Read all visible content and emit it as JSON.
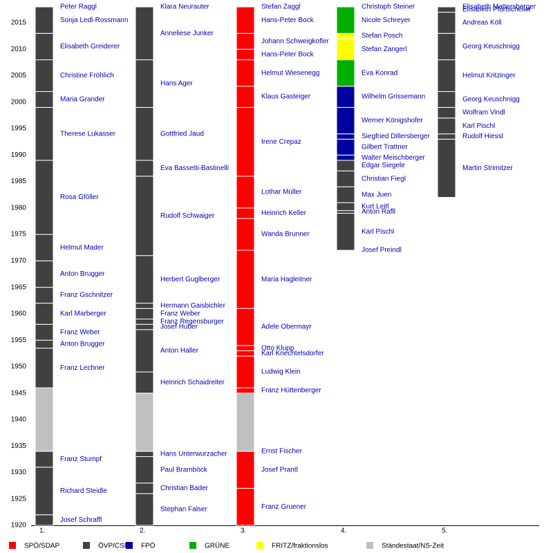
{
  "chart_data": {
    "type": "timeline",
    "ylim": [
      1920,
      2018
    ],
    "yticks": [
      1920,
      1925,
      1930,
      1935,
      1940,
      1945,
      1950,
      1955,
      1960,
      1965,
      1970,
      1975,
      1980,
      1985,
      1990,
      1995,
      2000,
      2005,
      2010,
      2015
    ],
    "parties": [
      {
        "name": "SPÖ/SDAP",
        "color": "#ff0000"
      },
      {
        "name": "ÖVP/CSP",
        "color": "#404040"
      },
      {
        "name": "FPÖ",
        "color": "#0000a0"
      },
      {
        "name": "GRÜNE",
        "color": "#00b000"
      },
      {
        "name": "FRITZ/fraktionslos",
        "color": "#ffff00"
      },
      {
        "name": "Ständestaat/NS-Zeit",
        "color": "#c0c0c0"
      }
    ],
    "columns": [
      {
        "label": "1.",
        "segments": [
          {
            "name": "Josef Schraffl",
            "party": 1,
            "start": 1920,
            "end": 1922
          },
          {
            "name": "Richard Steidle",
            "party": 1,
            "start": 1922,
            "end": 1931
          },
          {
            "name": "Franz Stumpf",
            "party": 1,
            "start": 1931,
            "end": 1934
          },
          {
            "party": 5,
            "start": 1934,
            "end": 1946
          },
          {
            "name": "Franz Lechner",
            "party": 1,
            "start": 1946,
            "end": 1953.5
          },
          {
            "name": "Anton Brugger",
            "party": 1,
            "start": 1953.5,
            "end": 1955
          },
          {
            "name": "Franz Weber",
            "party": 1,
            "start": 1955,
            "end": 1958
          },
          {
            "name": "Karl Marberger",
            "party": 1,
            "start": 1958,
            "end": 1962
          },
          {
            "name": "Franz Gschnitzer",
            "party": 1,
            "start": 1962,
            "end": 1965
          },
          {
            "name": "Anton Brugger",
            "party": 1,
            "start": 1965,
            "end": 1970
          },
          {
            "name": "Helmut Mader",
            "party": 1,
            "start": 1970,
            "end": 1975
          },
          {
            "name": "Rosa Gföller",
            "party": 1,
            "start": 1975,
            "end": 1989
          },
          {
            "name": "Therese Lukasser",
            "party": 1,
            "start": 1989,
            "end": 1999
          },
          {
            "name": "Maria Grander",
            "party": 1,
            "start": 1999,
            "end": 2002
          },
          {
            "name": "Christine Fröhlich",
            "party": 1,
            "start": 2002,
            "end": 2008
          },
          {
            "name": "Elisabeth Greiderer",
            "party": 1,
            "start": 2008,
            "end": 2013
          },
          {
            "name": "Sonja Ledl-Rossmann",
            "party": 1,
            "start": 2013,
            "end": 2018
          },
          {
            "name": "Peter Raggl",
            "party": 1,
            "start": 2018,
            "end": 2018
          }
        ]
      },
      {
        "label": "2.",
        "segments": [
          {
            "name": "Stephan Falser",
            "party": 1,
            "start": 1920,
            "end": 1926
          },
          {
            "name": "Christian Bader",
            "party": 1,
            "start": 1926,
            "end": 1928
          },
          {
            "name": "Paul Bramböck",
            "party": 1,
            "start": 1928,
            "end": 1933
          },
          {
            "name": "Hans Unterwurzacher",
            "party": 1,
            "start": 1933,
            "end": 1934
          },
          {
            "party": 5,
            "start": 1934,
            "end": 1945
          },
          {
            "name": "Heinrich Schaidreiter",
            "party": 1,
            "start": 1945,
            "end": 1949
          },
          {
            "name": "Anton Haller",
            "party": 1,
            "start": 1949,
            "end": 1957
          },
          {
            "name": "Josef Huber",
            "party": 1,
            "start": 1957,
            "end": 1958
          },
          {
            "name": "Franz Regensburger",
            "party": 1,
            "start": 1958,
            "end": 1959
          },
          {
            "name": "Franz Weber",
            "party": 1,
            "start": 1959,
            "end": 1961
          },
          {
            "name": "Hermann Gaisbichler",
            "party": 1,
            "start": 1961,
            "end": 1962
          },
          {
            "name": "Herbert Guglberger",
            "party": 1,
            "start": 1962,
            "end": 1971
          },
          {
            "name": "Rudolf Schwaiger",
            "party": 1,
            "start": 1971,
            "end": 1986
          },
          {
            "name": "Eva Bassetti-Bastinelli",
            "party": 1,
            "start": 1986,
            "end": 1989
          },
          {
            "name": "Gottfried Jaud",
            "party": 1,
            "start": 1989,
            "end": 1999
          },
          {
            "name": "Hans Ager",
            "party": 1,
            "start": 1999,
            "end": 2008
          },
          {
            "name": "Anneliese Junker",
            "party": 1,
            "start": 2008,
            "end": 2018
          },
          {
            "name": "Klara Neurauter",
            "party": 1,
            "start": 2018,
            "end": 2018
          }
        ]
      },
      {
        "label": "3.",
        "segments": [
          {
            "name": "Franz Gruener",
            "party": 0,
            "start": 1920,
            "end": 1927
          },
          {
            "name": "Josef Prantl",
            "party": 0,
            "start": 1927,
            "end": 1934
          },
          {
            "name": "Ernst Fischer",
            "party": 0,
            "start": 1934,
            "end": 1934
          },
          {
            "party": 5,
            "start": 1934,
            "end": 1945
          },
          {
            "name": "Franz Hüttenberger",
            "party": 0,
            "start": 1945,
            "end": 1946
          },
          {
            "name": "Ludwig Klein",
            "party": 0,
            "start": 1946,
            "end": 1952
          },
          {
            "name": "Karl Knechtelsdorfer",
            "party": 0,
            "start": 1952,
            "end": 1953
          },
          {
            "name": "Otto Klupp",
            "party": 0,
            "start": 1953,
            "end": 1954
          },
          {
            "name": "Adele Obermayr",
            "party": 0,
            "start": 1954,
            "end": 1961
          },
          {
            "name": "Maria Hagleitner",
            "party": 0,
            "start": 1961,
            "end": 1972
          },
          {
            "name": "Wanda Brunner",
            "party": 0,
            "start": 1972,
            "end": 1978
          },
          {
            "name": "Heinrich Keller",
            "party": 0,
            "start": 1978,
            "end": 1980
          },
          {
            "name": "Lothar Müller",
            "party": 0,
            "start": 1980,
            "end": 1986
          },
          {
            "name": "Irene Crepaz",
            "party": 0,
            "start": 1986,
            "end": 1999
          },
          {
            "name": "Klaus Gasteiger",
            "party": 0,
            "start": 1999,
            "end": 2003
          },
          {
            "name": "Helmut Wiesenegg",
            "party": 0,
            "start": 2003,
            "end": 2008
          },
          {
            "name": "Hans-Peter Bock",
            "party": 0,
            "start": 2008,
            "end": 2010
          },
          {
            "name": "Johann Schweigkofler",
            "party": 0,
            "start": 2010,
            "end": 2013
          },
          {
            "name": "Hans-Peter Bock",
            "party": 0,
            "start": 2013,
            "end": 2018
          },
          {
            "name": "Stefan Zaggl",
            "party": 0,
            "start": 2018,
            "end": 2018
          }
        ]
      },
      {
        "label": "4.",
        "segments": [
          {
            "name": "Josef Preindl",
            "party": 1,
            "start": 1972,
            "end": 1972
          },
          {
            "name": "Karl Pischl",
            "party": 1,
            "start": 1972,
            "end": 1979
          },
          {
            "name": "Anton Rafll",
            "party": 1,
            "start": 1979,
            "end": 1979.5
          },
          {
            "name": "Kurt Leitl",
            "party": 1,
            "start": 1979.5,
            "end": 1981
          },
          {
            "name": "Max Juen",
            "party": 1,
            "start": 1981,
            "end": 1984
          },
          {
            "name": "Christian Fiegl",
            "party": 1,
            "start": 1984,
            "end": 1987
          },
          {
            "name": "Edgar Siegele",
            "party": 1,
            "start": 1987,
            "end": 1989
          },
          {
            "name": "Walter Meischberger",
            "party": 2,
            "start": 1989,
            "end": 1990
          },
          {
            "name": "Gilbert Trattner",
            "party": 2,
            "start": 1990,
            "end": 1993
          },
          {
            "name": "Siegfried Dillersberger",
            "party": 2,
            "start": 1993,
            "end": 1994
          },
          {
            "name": "Werner Königshofer",
            "party": 2,
            "start": 1994,
            "end": 1999
          },
          {
            "name": "Wilhelm Grissemann",
            "party": 2,
            "start": 1999,
            "end": 2003
          },
          {
            "name": "Eva Konrad",
            "party": 3,
            "start": 2003,
            "end": 2008
          },
          {
            "name": "Stefan Zangerl",
            "party": 4,
            "start": 2008,
            "end": 2012
          },
          {
            "name": "Stefan Posch",
            "party": 4,
            "start": 2012,
            "end": 2013
          },
          {
            "name": "Nicole Schreyer",
            "party": 3,
            "start": 2013,
            "end": 2018
          },
          {
            "name": "Christoph Steiner",
            "party": 1,
            "start": 2018,
            "end": 2018
          }
        ]
      },
      {
        "label": "5.",
        "segments": [
          {
            "name": "Martin Strimitzer",
            "party": 1,
            "start": 1982,
            "end": 1993
          },
          {
            "name": "Rudolf Hiessl",
            "party": 1,
            "start": 1993,
            "end": 1994
          },
          {
            "name": "Karl Pischl",
            "party": 1,
            "start": 1994,
            "end": 1997
          },
          {
            "name": "Wolfram Vindl",
            "party": 1,
            "start": 1997,
            "end": 1999
          },
          {
            "name": "Georg Keuschnigg",
            "party": 1,
            "start": 1999,
            "end": 2002
          },
          {
            "name": "Helmut Kritzinger",
            "party": 1,
            "start": 2002,
            "end": 2008
          },
          {
            "name": "Georg Keuschnigg",
            "party": 1,
            "start": 2008,
            "end": 2013
          },
          {
            "name": "Andreas Köll",
            "party": 1,
            "start": 2013,
            "end": 2017
          },
          {
            "name": "Elisabeth Pfurtscheller",
            "party": 1,
            "start": 2017,
            "end": 2018
          },
          {
            "name": "Elisabeth Mattersberger",
            "party": 1,
            "start": 2018,
            "end": 2018
          }
        ]
      }
    ]
  }
}
